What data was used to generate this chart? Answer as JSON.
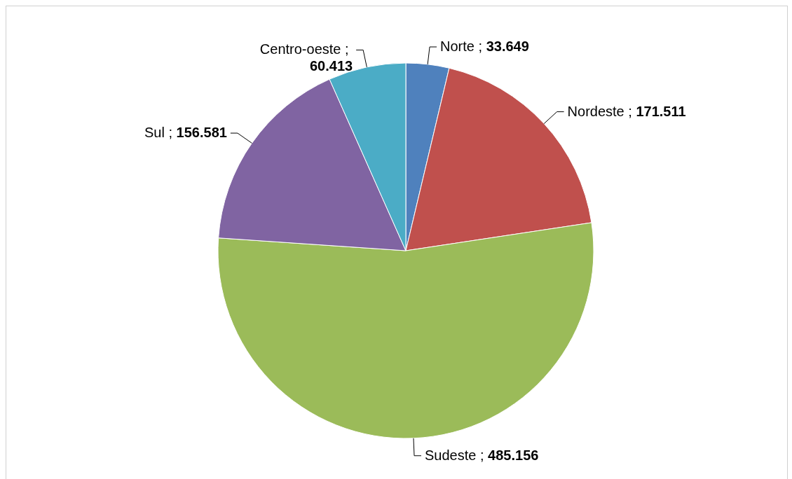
{
  "chart_data": {
    "type": "pie",
    "categories": [
      "Norte",
      "Nordeste",
      "Sudeste",
      "Sul",
      "Centro-oeste"
    ],
    "values": [
      33649,
      171511,
      485156,
      156581,
      60413
    ],
    "value_labels": [
      "; 33.649",
      "; 171.511",
      "; 485.156",
      "; 156.581",
      "; 60.413"
    ],
    "colors": [
      "#4f81bd",
      "#c0504d",
      "#9bbb59",
      "#8064a2",
      "#4bacc6"
    ],
    "legend": false
  }
}
